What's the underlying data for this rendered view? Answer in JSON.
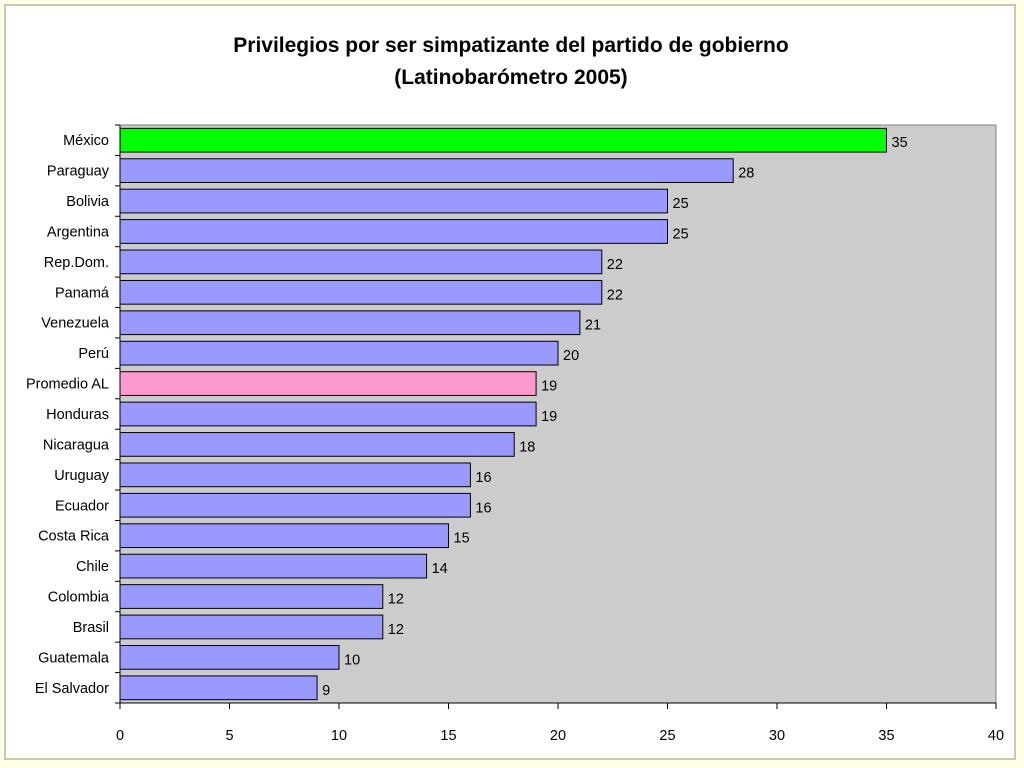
{
  "chart_data": {
    "type": "bar",
    "orientation": "horizontal",
    "title": [
      "Privilegios por ser simpatizante del partido de gobierno",
      "(Latinobarómetro 2005)"
    ],
    "categories": [
      "México",
      "Paraguay",
      "Bolivia",
      "Argentina",
      "Rep.Dom.",
      "Panamá",
      "Venezuela",
      "Perú",
      "Promedio AL",
      "Honduras",
      "Nicaragua",
      "Uruguay",
      "Ecuador",
      "Costa Rica",
      "Chile",
      "Colombia",
      "Brasil",
      "Guatemala",
      "El Salvador"
    ],
    "values": [
      35,
      28,
      25,
      25,
      22,
      22,
      21,
      20,
      19,
      19,
      18,
      16,
      16,
      15,
      14,
      12,
      12,
      10,
      9
    ],
    "bar_colors": [
      "#00ff00",
      "#9999ff",
      "#9999ff",
      "#9999ff",
      "#9999ff",
      "#9999ff",
      "#9999ff",
      "#9999ff",
      "#ff99cc",
      "#9999ff",
      "#9999ff",
      "#9999ff",
      "#9999ff",
      "#9999ff",
      "#9999ff",
      "#9999ff",
      "#9999ff",
      "#9999ff",
      "#9999ff"
    ],
    "xlim": [
      0,
      40
    ],
    "xticks": [
      0,
      5,
      10,
      15,
      20,
      25,
      30,
      35,
      40
    ],
    "xlabel": "",
    "ylabel": "",
    "grid": false,
    "legend": "none",
    "plot_background": "#cccccc"
  }
}
